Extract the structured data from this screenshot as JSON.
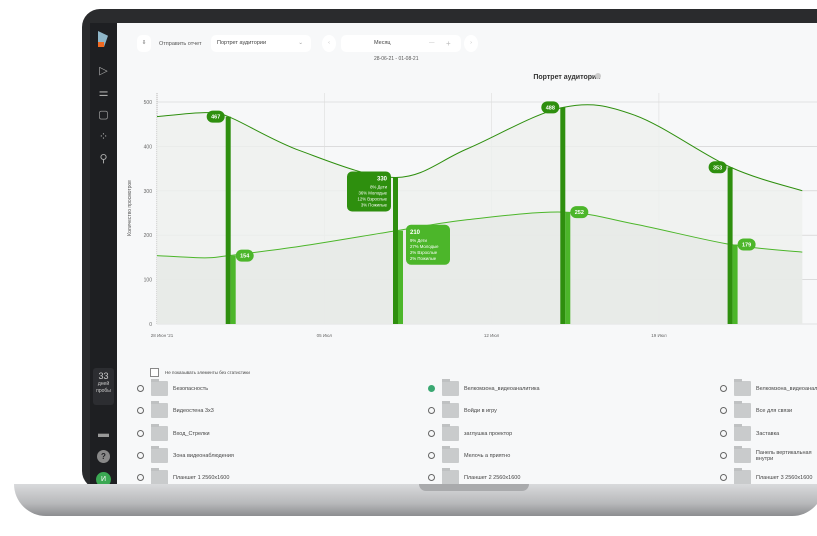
{
  "toolbar": {
    "send_report": "Отправить отчет",
    "report_select": "Портрет аудитории",
    "period": "Месяц",
    "minus": "—",
    "plus": "+",
    "date_range": "28-06-21 - 01-08-21"
  },
  "sidebar": {
    "trial_days": "33",
    "trial_label1": "дней",
    "trial_label2": "пробы",
    "avatar": "И",
    "icons": [
      "play-icon",
      "filters-icon",
      "document-icon",
      "loader-icon",
      "user-icon",
      "monitor-icon",
      "help-icon"
    ]
  },
  "chart_data": {
    "type": "area",
    "title": "Портрет аудитории",
    "ylabel": "Количество просмотров",
    "ylim": [
      0,
      500
    ],
    "yticks": [
      "0",
      "100",
      "200",
      "300",
      "400",
      "500"
    ],
    "xticks": [
      {
        "date": "2021-06-28",
        "label": "28 Июн '21"
      },
      {
        "date": "2021-07-05",
        "label": "05 Июл"
      },
      {
        "date": "2021-07-12",
        "label": "12 Июл"
      },
      {
        "date": "2021-07-19",
        "label": "19 Июл"
      }
    ],
    "xlim": [
      "2021-06-28",
      "2021-07-25"
    ],
    "grid": true,
    "colors": {
      "upper": "#2e8f0e",
      "lower": "#4cb62a"
    },
    "series": [
      {
        "x": [
          "2021-06-28",
          "2021-06-30",
          "2021-07-01",
          "2021-07-04",
          "2021-07-08",
          "2021-07-11",
          "2021-07-15",
          "2021-07-18",
          "2021-07-22",
          "2021-07-25"
        ],
        "values": [
          467,
          476,
          467,
          390,
          330,
          395,
          488,
          470,
          353,
          300
        ]
      },
      {
        "x": [
          "2021-06-28",
          "2021-06-30",
          "2021-07-01",
          "2021-07-04",
          "2021-07-08",
          "2021-07-11",
          "2021-07-15",
          "2021-07-18",
          "2021-07-22",
          "2021-07-25"
        ],
        "values": [
          154,
          149,
          154,
          175,
          210,
          235,
          252,
          225,
          179,
          162
        ]
      }
    ],
    "bars": [
      {
        "date": "2021-07-01",
        "upper": 467,
        "lower": 154
      },
      {
        "date": "2021-07-08",
        "upper": 330,
        "lower": 210,
        "upper_breakdown": [
          "8% Дети",
          "36% Молодые",
          "12% Взрослые",
          "3% Пожилые"
        ],
        "lower_breakdown": [
          "9% Дети",
          "27% Молодые",
          "2% Взрослые",
          "2% Пожилые"
        ]
      },
      {
        "date": "2021-07-15",
        "upper": 488,
        "lower": 252
      },
      {
        "date": "2021-07-22",
        "upper": 353,
        "lower": 179
      }
    ]
  },
  "filter": {
    "hide_empty": "Не показывать элементы без статистики"
  },
  "items": [
    {
      "label": "Безопасность",
      "checked": false
    },
    {
      "label": "Велкомзона_видеоаналитика",
      "checked": true
    },
    {
      "label": "Велкомзона_видеоаналитика",
      "checked": false
    },
    {
      "label": "Видеостена 3x3",
      "checked": false
    },
    {
      "label": "Войди в игру",
      "checked": false
    },
    {
      "label": "Все для связи",
      "checked": false
    },
    {
      "label": "Вход_Стрелки",
      "checked": false
    },
    {
      "label": "заглушка проектор",
      "checked": false
    },
    {
      "label": "Заставка",
      "checked": false
    },
    {
      "label": "Зона видеонаблюдения",
      "checked": false
    },
    {
      "label": "Мелочь а приятно",
      "checked": false
    },
    {
      "label": "Панель вертикальная внутри",
      "checked": false
    },
    {
      "label": "Планшет 1 2560x1600",
      "checked": false
    },
    {
      "label": "Планшет 2 2560x1600",
      "checked": false
    },
    {
      "label": "Планшет 3 2560x1600",
      "checked": false
    }
  ]
}
